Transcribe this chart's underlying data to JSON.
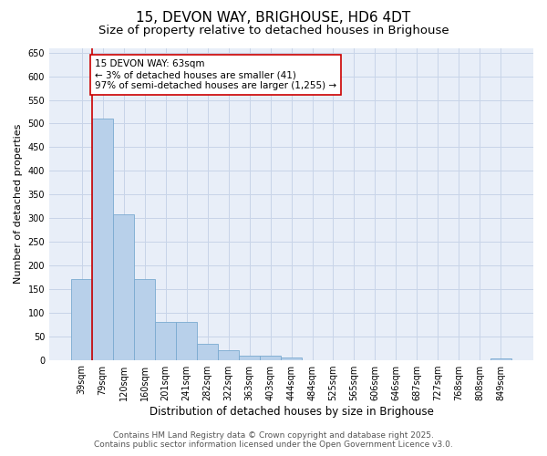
{
  "title": "15, DEVON WAY, BRIGHOUSE, HD6 4DT",
  "subtitle": "Size of property relative to detached houses in Brighouse",
  "xlabel": "Distribution of detached houses by size in Brighouse",
  "ylabel": "Number of detached properties",
  "categories": [
    "39sqm",
    "79sqm",
    "120sqm",
    "160sqm",
    "201sqm",
    "241sqm",
    "282sqm",
    "322sqm",
    "363sqm",
    "403sqm",
    "444sqm",
    "484sqm",
    "525sqm",
    "565sqm",
    "606sqm",
    "646sqm",
    "687sqm",
    "727sqm",
    "768sqm",
    "808sqm",
    "849sqm"
  ],
  "values": [
    170,
    510,
    308,
    170,
    80,
    80,
    33,
    20,
    9,
    9,
    5,
    0,
    0,
    0,
    0,
    0,
    0,
    0,
    0,
    0,
    4
  ],
  "bar_color": "#b8d0ea",
  "bar_edge_color": "#7aaad0",
  "annotation_text": "15 DEVON WAY: 63sqm\n← 3% of detached houses are smaller (41)\n97% of semi-detached houses are larger (1,255) →",
  "annotation_box_color": "#ffffff",
  "annotation_box_edge_color": "#cc0000",
  "property_line_color": "#cc0000",
  "property_line_x": 0.5,
  "ylim": [
    0,
    660
  ],
  "yticks": [
    0,
    50,
    100,
    150,
    200,
    250,
    300,
    350,
    400,
    450,
    500,
    550,
    600,
    650
  ],
  "grid_color": "#c8d4e8",
  "background_color": "#e8eef8",
  "footer_line1": "Contains HM Land Registry data © Crown copyright and database right 2025.",
  "footer_line2": "Contains public sector information licensed under the Open Government Licence v3.0.",
  "title_fontsize": 11,
  "subtitle_fontsize": 9.5,
  "xlabel_fontsize": 8.5,
  "ylabel_fontsize": 8,
  "tick_fontsize": 7,
  "annotation_fontsize": 7.5,
  "footer_fontsize": 6.5
}
